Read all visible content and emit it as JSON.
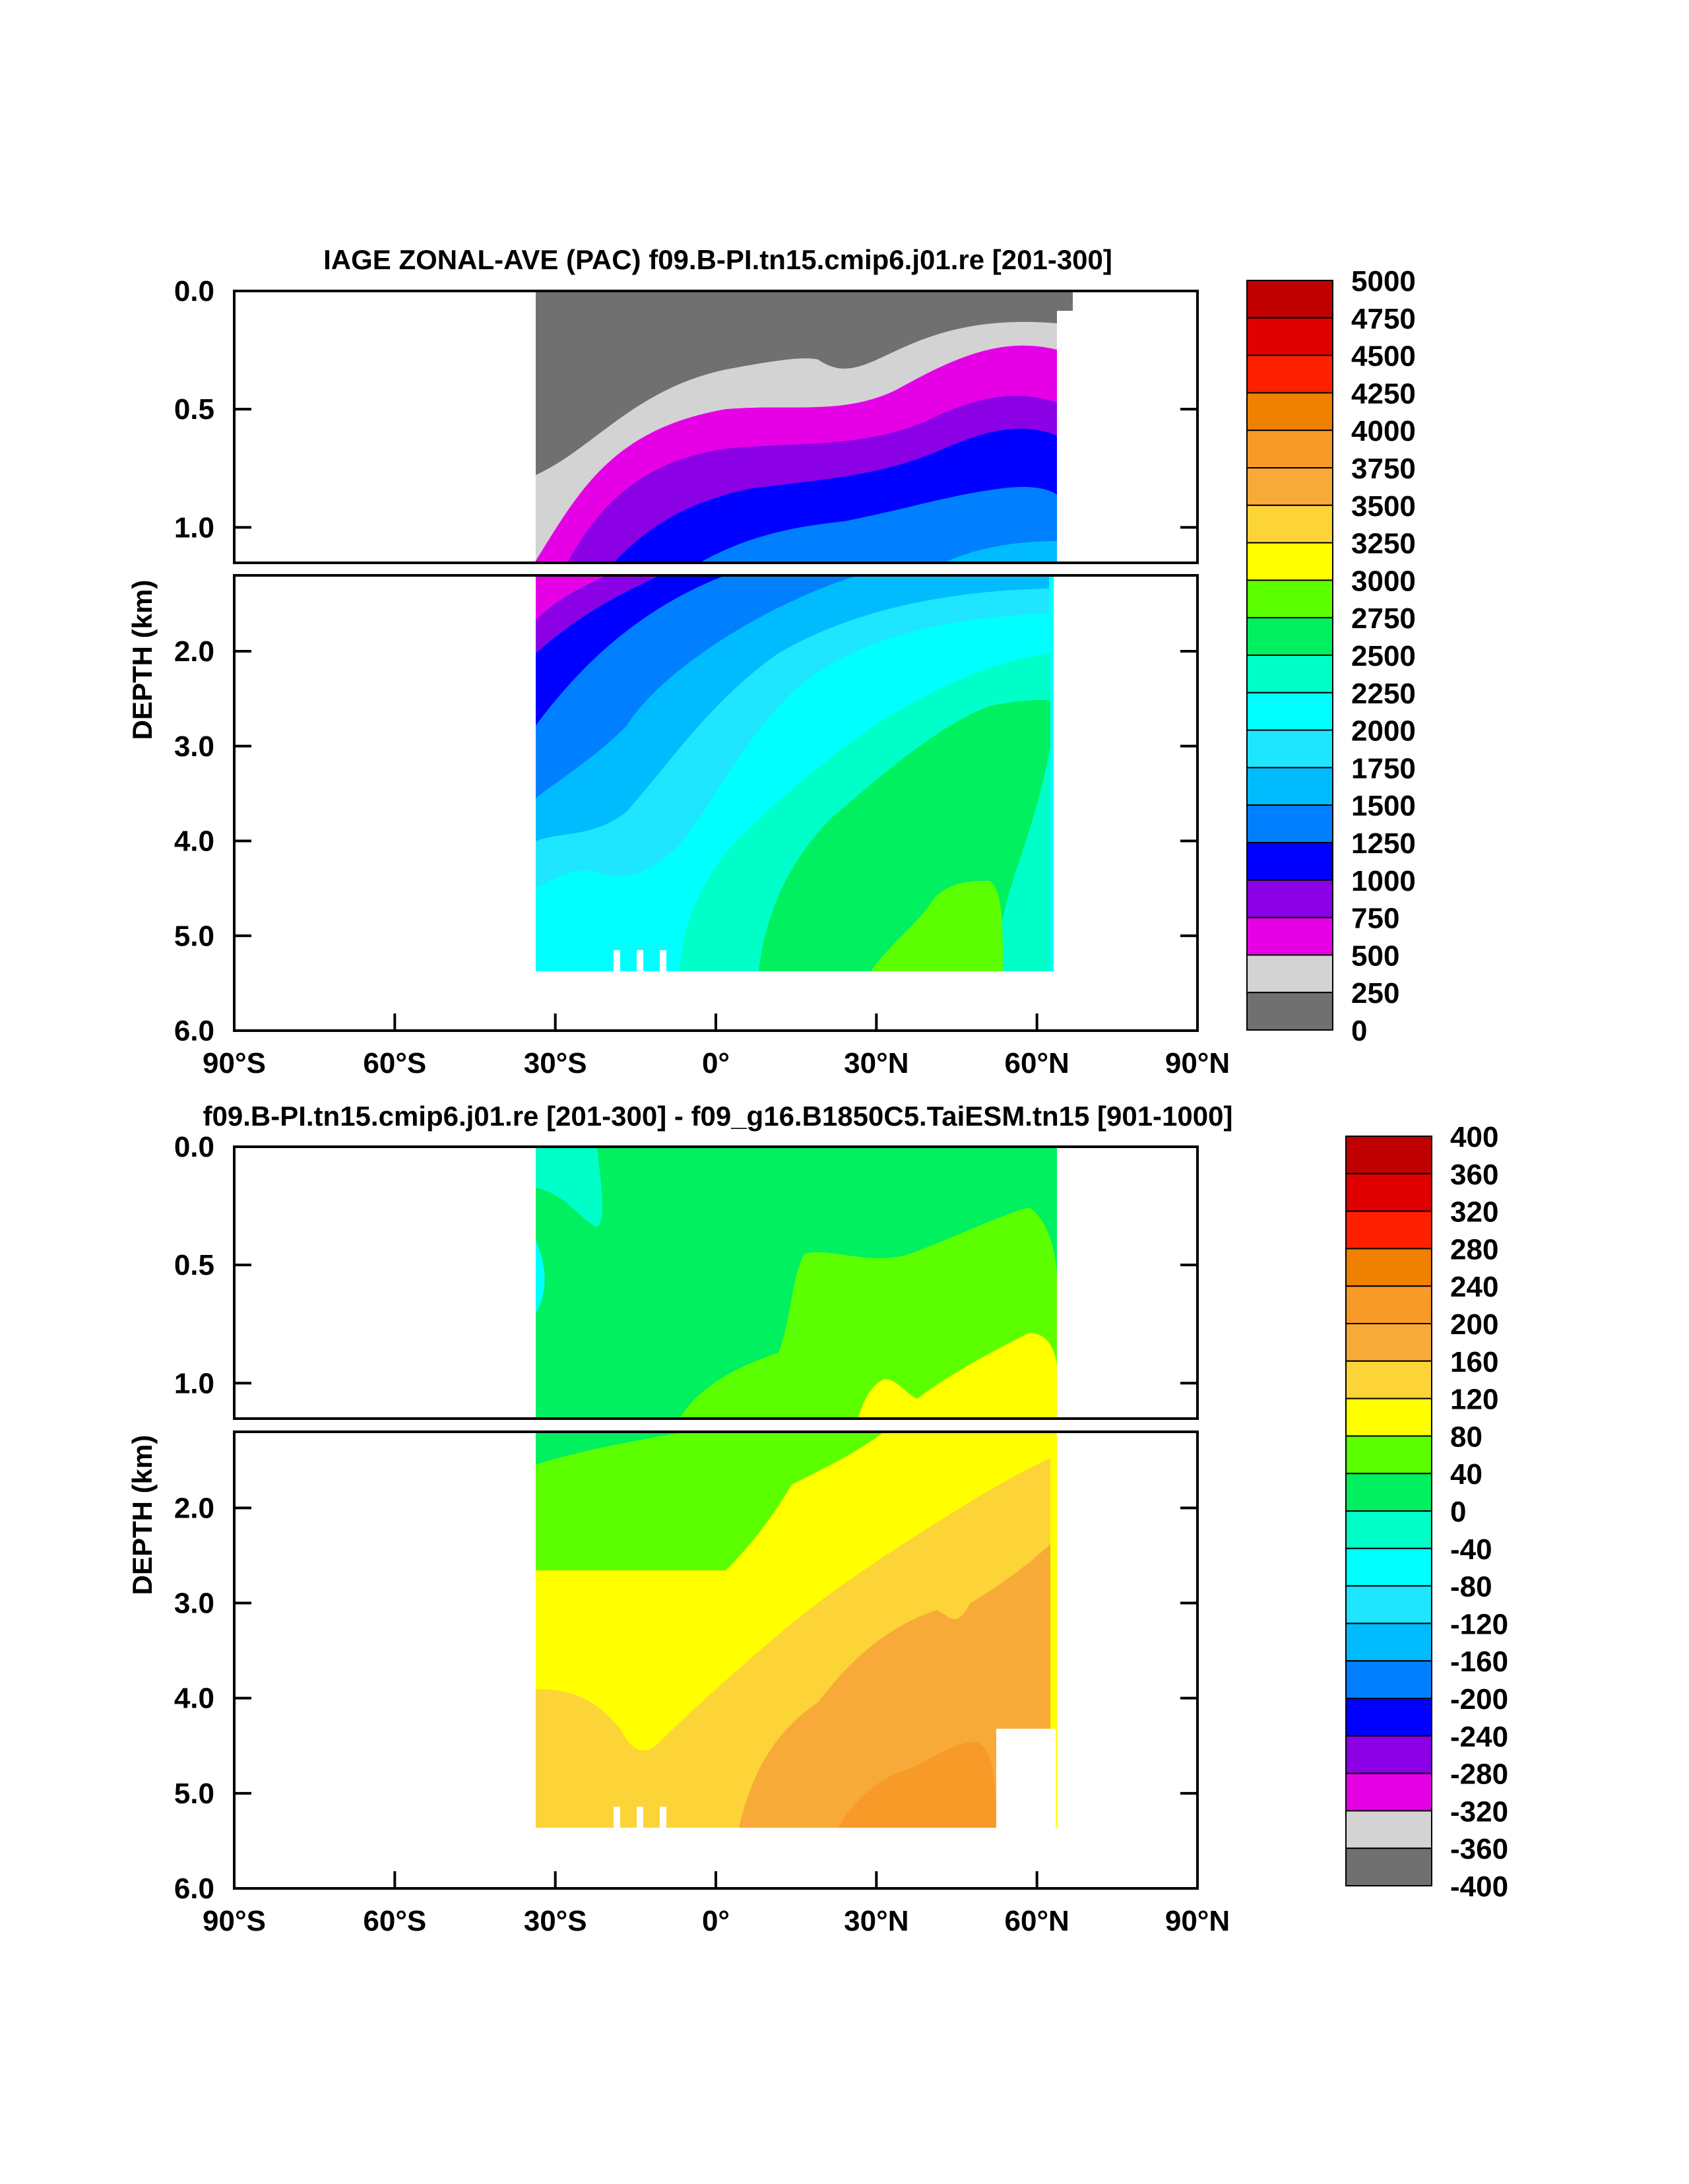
{
  "chart_data": [
    {
      "type": "heatmap",
      "title": "IAGE ZONAL-AVE (PAC) f09.B-PI.tn15.cmip6.j01.re [201-300]",
      "ylabel": "DEPTH (km)",
      "xlabel": "",
      "x_ticks": [
        "90°S",
        "60°S",
        "30°S",
        "0°",
        "30°N",
        "60°N",
        "90°N"
      ],
      "x_range": [
        -90,
        90
      ],
      "y_ticks_upper": [
        "0.0",
        "0.5",
        "1.0"
      ],
      "y_ticks_lower": [
        "2.0",
        "3.0",
        "4.0",
        "5.0",
        "6.0"
      ],
      "y_range": [
        0,
        6
      ],
      "data_lat_range": [
        -34,
        62
      ],
      "colorbar_labels": [
        "5000",
        "4750",
        "4500",
        "4250",
        "4000",
        "3750",
        "3500",
        "3250",
        "3000",
        "2750",
        "2500",
        "2250",
        "2000",
        "1750",
        "1500",
        "1250",
        "1000",
        "750",
        "500",
        "250",
        "0"
      ],
      "levels_colors": [
        "#c00000",
        "#e00000",
        "#ff2000",
        "#f08000",
        "#f89a28",
        "#f8aa38",
        "#fcd438",
        "#ffff00",
        "#5cff00",
        "#00f060",
        "#00ffc8",
        "#00ffff",
        "#1ee6ff",
        "#00bcff",
        "#0080ff",
        "#0000ff",
        "#8c00e6",
        "#e600e6",
        "#d3d3d3",
        "#707070"
      ]
    },
    {
      "type": "heatmap",
      "title": "f09.B-PI.tn15.cmip6.j01.re [201-300] - f09_g16.B1850C5.TaiESM.tn15 [901-1000]",
      "ylabel": "DEPTH (km)",
      "xlabel": "",
      "x_ticks": [
        "90°S",
        "60°S",
        "30°S",
        "0°",
        "30°N",
        "60°N",
        "90°N"
      ],
      "x_range": [
        -90,
        90
      ],
      "y_ticks_upper": [
        "0.0",
        "0.5",
        "1.0"
      ],
      "y_ticks_lower": [
        "2.0",
        "3.0",
        "4.0",
        "5.0",
        "6.0"
      ],
      "y_range": [
        0,
        6
      ],
      "data_lat_range": [
        -34,
        62
      ],
      "colorbar_labels": [
        "400",
        "360",
        "320",
        "280",
        "240",
        "200",
        "160",
        "120",
        "80",
        "40",
        "0",
        "-40",
        "-80",
        "-120",
        "-160",
        "-200",
        "-240",
        "-280",
        "-320",
        "-360",
        "-400"
      ],
      "levels_colors": [
        "#c00000",
        "#e00000",
        "#ff2000",
        "#f08000",
        "#f89a28",
        "#f8aa38",
        "#fcd438",
        "#ffff00",
        "#5cff00",
        "#00f060",
        "#00ffc8",
        "#00ffff",
        "#1ee6ff",
        "#00bcff",
        "#0080ff",
        "#0000ff",
        "#8c00e6",
        "#e600e6",
        "#d3d3d3",
        "#707070"
      ]
    }
  ]
}
